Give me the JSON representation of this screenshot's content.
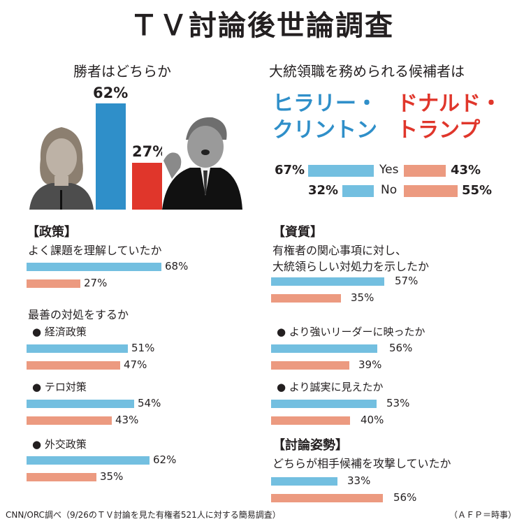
{
  "title": "ＴＶ討論後世論調査",
  "colors": {
    "clinton": "#2f8fc9",
    "trump": "#e0362b",
    "bar_blue": "#73bfe0",
    "bar_pink": "#ec9a80"
  },
  "winner": {
    "heading": "勝者はどちらか",
    "clinton_pct": "62%",
    "trump_pct": "27%"
  },
  "fit": {
    "heading": "大統領職を務められる候補者は",
    "clinton_name_1": "ヒラリー・",
    "clinton_name_2": "クリントン",
    "trump_name_1": "ドナルド・",
    "trump_name_2": "トランプ",
    "yes_label": "Yes",
    "no_label": "No",
    "clinton_yes": "67%",
    "clinton_no": "32%",
    "trump_yes": "43%",
    "trump_no": "55%"
  },
  "policy": {
    "heading": "【政策】",
    "q1": "よく課題を理解していたか",
    "q1_c": "68%",
    "q1_t": "27%",
    "q2": "最善の対処をするか",
    "econ": "●  経済政策",
    "econ_c": "51%",
    "econ_t": "47%",
    "terror": "●  テロ対策",
    "terror_c": "54%",
    "terror_t": "43%",
    "foreign": "●  外交政策",
    "foreign_c": "62%",
    "foreign_t": "35%"
  },
  "quality": {
    "heading": "【資質】",
    "q1_l1": "有権者の関心事項に対し、",
    "q1_l2": "大統領らしい対処力を示したか",
    "q1_c": "57%",
    "q1_t": "35%",
    "leader": "● より強いリーダーに映ったか",
    "leader_c": "56%",
    "leader_t": "39%",
    "honest": "● より誠実に見えたか",
    "honest_c": "53%",
    "honest_t": "40%"
  },
  "stance": {
    "heading": "【討論姿勢】",
    "q1": "どちらが相手候補を攻撃していたか",
    "q1_c": "33%",
    "q1_t": "56%"
  },
  "footer": {
    "source": "CNN/ORC調べ（9/26のＴＶ討論を見た有権者521人に対する簡易調査）",
    "credit": "（ＡＦＰ＝時事）"
  },
  "chart_data": [
    {
      "type": "bar",
      "title": "勝者はどちらか",
      "categories": [
        "ヒラリー・クリントン",
        "ドナルド・トランプ"
      ],
      "values": [
        62,
        27
      ],
      "unit": "%"
    },
    {
      "type": "bar",
      "title": "大統領職を務められる候補者は",
      "categories": [
        "Yes",
        "No"
      ],
      "series": [
        {
          "name": "ヒラリー・クリントン",
          "values": [
            67,
            32
          ]
        },
        {
          "name": "ドナルド・トランプ",
          "values": [
            43,
            55
          ]
        }
      ],
      "unit": "%"
    },
    {
      "type": "bar",
      "title": "【政策】",
      "categories": [
        "よく課題を理解していたか",
        "経済政策",
        "テロ対策",
        "外交政策"
      ],
      "series": [
        {
          "name": "ヒラリー・クリントン",
          "values": [
            68,
            51,
            54,
            62
          ]
        },
        {
          "name": "ドナルド・トランプ",
          "values": [
            27,
            47,
            43,
            35
          ]
        }
      ],
      "unit": "%"
    },
    {
      "type": "bar",
      "title": "【資質】",
      "categories": [
        "大統領らしい対処力を示したか",
        "より強いリーダーに映ったか",
        "より誠実に見えたか"
      ],
      "series": [
        {
          "name": "ヒラリー・クリントン",
          "values": [
            57,
            56,
            53
          ]
        },
        {
          "name": "ドナルド・トランプ",
          "values": [
            35,
            39,
            40
          ]
        }
      ],
      "unit": "%"
    },
    {
      "type": "bar",
      "title": "【討論姿勢】",
      "categories": [
        "どちらが相手候補を攻撃していたか"
      ],
      "series": [
        {
          "name": "ヒラリー・クリントン",
          "values": [
            33
          ]
        },
        {
          "name": "ドナルド・トランプ",
          "values": [
            56
          ]
        }
      ],
      "unit": "%"
    }
  ]
}
